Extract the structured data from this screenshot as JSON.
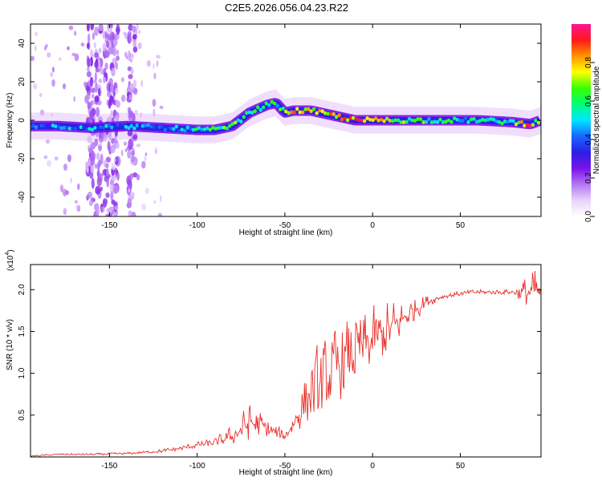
{
  "title": "C2E5.2026.056.04.23.R22",
  "chart_data": [
    {
      "type": "heatmap",
      "name": "spectrogram",
      "xlabel": "Height of straight line (km)",
      "ylabel": "Frequency (Hz)",
      "xlim": [
        -195,
        96
      ],
      "ylim": [
        -50,
        50
      ],
      "xticks": [
        -150,
        -100,
        -50,
        0,
        50
      ],
      "yticks": [
        -40,
        -20,
        0,
        20,
        40
      ],
      "colorbar": {
        "label": "Normalized spectral amplitude",
        "range": [
          0,
          1
        ],
        "ticks": [
          "0.0",
          "0.2",
          "0.4",
          "0.6",
          "0.8"
        ],
        "colors": [
          "#ffffff",
          "#e9d2fb",
          "#b476f4",
          "#7a12e8",
          "#2a1fe6",
          "#1966ff",
          "#00e5ff",
          "#00ff7a",
          "#38ff00",
          "#ffff00",
          "#ff9500",
          "#ff1a1a",
          "#ff1493"
        ]
      },
      "ridge": {
        "x": [
          -195,
          -180,
          -160,
          -140,
          -120,
          -100,
          -90,
          -80,
          -70,
          -60,
          -55,
          -50,
          -45,
          -40,
          -35,
          -30,
          -20,
          -10,
          0,
          10,
          20,
          40,
          60,
          80,
          90,
          96
        ],
        "freq": [
          -3,
          -3,
          -4,
          -3,
          -4,
          -5,
          -5,
          -3,
          4,
          8,
          9,
          4,
          5,
          5,
          5,
          4,
          2,
          0,
          0,
          0,
          0,
          0,
          0,
          -1,
          -2,
          0
        ],
        "amplitude": [
          0.35,
          0.45,
          0.45,
          0.4,
          0.45,
          0.55,
          0.6,
          0.6,
          0.6,
          0.6,
          0.55,
          0.7,
          0.8,
          0.8,
          0.75,
          0.75,
          0.8,
          0.85,
          0.85,
          0.7,
          0.6,
          0.55,
          0.5,
          0.55,
          0.9,
          0.5
        ]
      },
      "noise_columns_km": [
        -161,
        -156,
        -151,
        -147,
        -137
      ]
    },
    {
      "type": "line",
      "name": "snr",
      "xlabel": "Height of straight line (km)",
      "ylabel": "SNR (10 * v/v)",
      "scale_note": "(x10",
      "scale_exponent": "4",
      "xlim": [
        -195,
        96
      ],
      "ylim": [
        0,
        2.3
      ],
      "xticks": [
        -150,
        -100,
        -50,
        0,
        50
      ],
      "yticks": [
        "0.5",
        "1.0",
        "1.5",
        "2.0"
      ],
      "color": "#e8322c",
      "trend": {
        "x": [
          -195,
          -180,
          -160,
          -140,
          -120,
          -110,
          -100,
          -90,
          -80,
          -75,
          -70,
          -65,
          -60,
          -55,
          -50,
          -45,
          -40,
          -35,
          -30,
          -25,
          -20,
          -15,
          -10,
          -5,
          0,
          5,
          10,
          15,
          20,
          25,
          30,
          40,
          50,
          60,
          70,
          80,
          90,
          96
        ],
        "y": [
          0.01,
          0.03,
          0.03,
          0.04,
          0.07,
          0.1,
          0.14,
          0.17,
          0.25,
          0.32,
          0.4,
          0.38,
          0.33,
          0.28,
          0.25,
          0.4,
          0.6,
          0.75,
          0.85,
          0.95,
          1.05,
          1.15,
          1.22,
          1.3,
          1.38,
          1.45,
          1.52,
          1.6,
          1.7,
          1.78,
          1.85,
          1.92,
          1.95,
          1.97,
          1.97,
          1.97,
          1.96,
          1.95
        ]
      },
      "noise_amplitude": {
        "x": [
          -195,
          -130,
          -90,
          -80,
          -70,
          -60,
          -50,
          -40,
          -30,
          -20,
          -10,
          0,
          10,
          20,
          30,
          40,
          80,
          88,
          93,
          96
        ],
        "y": [
          0.01,
          0.02,
          0.06,
          0.15,
          0.3,
          0.15,
          0.08,
          0.35,
          0.6,
          0.55,
          0.55,
          0.45,
          0.45,
          0.25,
          0.1,
          0.04,
          0.04,
          0.25,
          0.35,
          0.2
        ]
      }
    }
  ]
}
